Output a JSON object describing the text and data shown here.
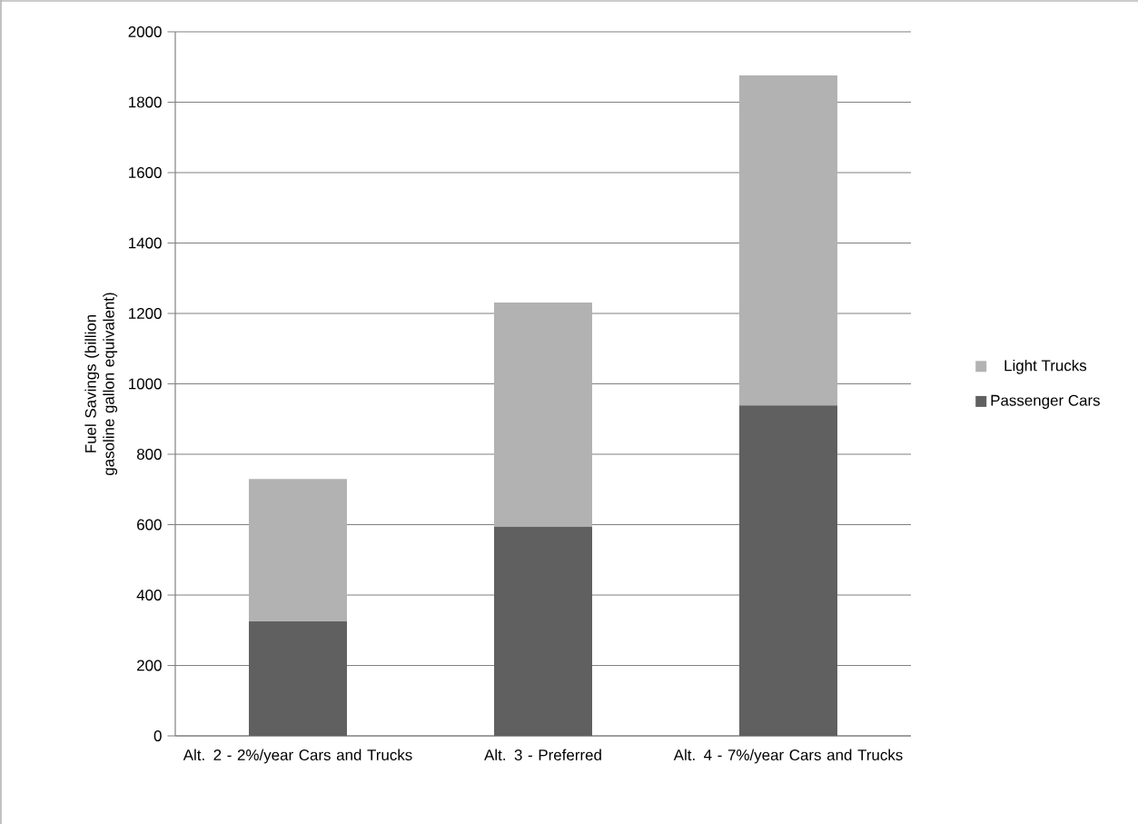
{
  "chart_data": {
    "type": "bar",
    "stacked": true,
    "categories": [
      "Alt. 2 - 2%/year Cars and Trucks",
      "Alt. 3 - Preferred",
      "Alt. 4 - 7%/year Cars and Trucks"
    ],
    "series": [
      {
        "name": "Passenger Cars",
        "color": "#606060",
        "values": [
          325,
          594,
          939
        ]
      },
      {
        "name": "Light Trucks",
        "color": "#b2b2b2",
        "values": [
          405,
          637,
          937
        ]
      }
    ],
    "ylabel": "Fuel Savings (billion gasoline gallon equivalent)",
    "ylim": [
      0,
      2000
    ],
    "yticks": [
      0,
      200,
      400,
      600,
      800,
      1000,
      1200,
      1400,
      1600,
      1800,
      2000
    ],
    "grid": "y",
    "legend": "right"
  }
}
